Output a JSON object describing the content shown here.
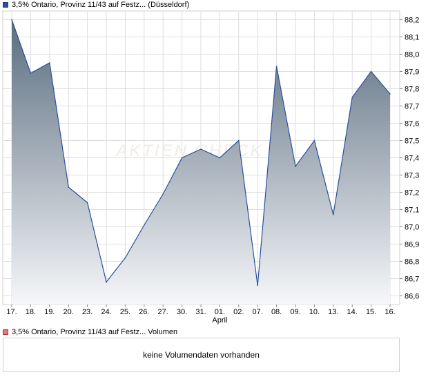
{
  "price_legend": {
    "label": "3,5% Ontario, Provinz 11/43 auf Festz... (Düsseldorf)",
    "color": "#2b4f9c"
  },
  "volume_legend": {
    "label": "3,5% Ontario, Provinz 11/43 auf Festz... Volumen",
    "color": "#e07a7a"
  },
  "watermark": "AKTIEN CHECK",
  "volume_message": "keine Volumendaten vorhanden",
  "chart_data": {
    "type": "area",
    "categories": [
      "17.",
      "18.",
      "19.",
      "20.",
      "23.",
      "24.",
      "25.",
      "26.",
      "27.",
      "30.",
      "31.",
      "01.",
      "02.",
      "07.",
      "08.",
      "09.",
      "10.",
      "13.",
      "14.",
      "15.",
      "16."
    ],
    "month_labels": [
      {
        "category_index": 11,
        "label": "April"
      }
    ],
    "series": [
      {
        "values": [
          88.2,
          87.89,
          87.95,
          87.23,
          87.14,
          86.68,
          86.82,
          87.01,
          87.19,
          87.4,
          87.45,
          87.4,
          87.5,
          86.66,
          87.93,
          87.35,
          87.5,
          87.07,
          87.75,
          87.9,
          87.77
        ]
      }
    ],
    "y_ticks": [
      "88,2",
      "88,1",
      "88,0",
      "87,9",
      "87,8",
      "87,7",
      "87,6",
      "87,5",
      "87,4",
      "87,3",
      "87,2",
      "87,1",
      "87,0",
      "86,9",
      "86,8",
      "86,7",
      "86,6"
    ],
    "ylim": [
      86.55,
      88.25
    ],
    "grid": true,
    "colors": {
      "line": "#2b4f9c",
      "fill_top": "#5a6d7f",
      "fill_bottom": "#f6f7f9",
      "grid": "#dedede"
    }
  }
}
